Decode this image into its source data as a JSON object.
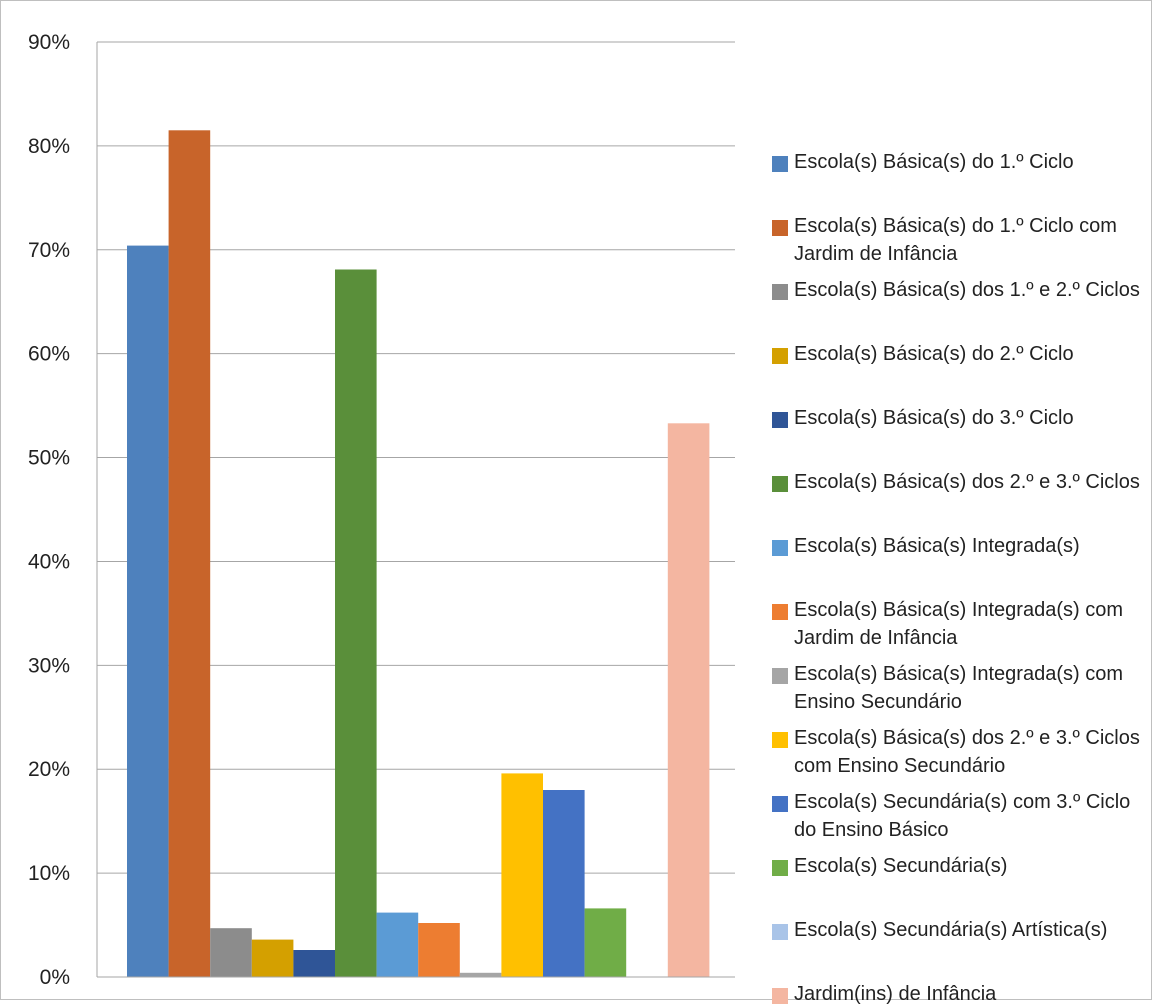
{
  "chart_data": {
    "type": "bar",
    "title": "",
    "xlabel": "",
    "ylabel": "",
    "ylim": [
      0,
      90
    ],
    "y_ticks": [
      "0%",
      "10%",
      "20%",
      "30%",
      "40%",
      "50%",
      "60%",
      "70%",
      "80%",
      "90%"
    ],
    "grid": true,
    "legend_position": "right",
    "series": [
      {
        "name": "Escola(s) Básica(s) do 1.º Ciclo",
        "value": 70.4,
        "color": "#4e81bd"
      },
      {
        "name": "Escola(s) Básica(s) do 1.º Ciclo com Jardim de Infância",
        "value": 81.5,
        "color": "#c8642a"
      },
      {
        "name": "Escola(s) Básica(s) dos 1.º e 2.º Ciclos",
        "value": 4.7,
        "color": "#8c8c8c"
      },
      {
        "name": "Escola(s) Básica(s) do 2.º Ciclo",
        "value": 3.6,
        "color": "#d4a000"
      },
      {
        "name": "Escola(s) Básica(s) do 3.º Ciclo",
        "value": 2.6,
        "color": "#2f5597"
      },
      {
        "name": "Escola(s) Básica(s) dos 2.º e 3.º Ciclos",
        "value": 68.1,
        "color": "#5a8f3a"
      },
      {
        "name": "Escola(s) Básica(s) Integrada(s)",
        "value": 6.2,
        "color": "#5b9bd5"
      },
      {
        "name": "Escola(s) Básica(s) Integrada(s) com Jardim de Infância",
        "value": 5.2,
        "color": "#ed7d31"
      },
      {
        "name": "Escola(s) Básica(s) Integrada(s) com Ensino Secundário",
        "value": 0.4,
        "color": "#a5a5a5"
      },
      {
        "name": "Escola(s) Básica(s) dos 2.º e 3.º Ciclos com Ensino Secundário",
        "value": 19.6,
        "color": "#ffc000"
      },
      {
        "name": "Escola(s) Secundária(s) com 3.º Ciclo do Ensino Básico",
        "value": 18.0,
        "color": "#4472c4"
      },
      {
        "name": "Escola(s) Secundária(s)",
        "value": 6.6,
        "color": "#70ad47"
      },
      {
        "name": "Escola(s) Secundária(s) Artística(s)",
        "value": 0,
        "color": "#a9c4e8"
      },
      {
        "name": "Jardim(ins) de Infância",
        "value": 53.3,
        "color": "#f4b6a1"
      }
    ]
  }
}
